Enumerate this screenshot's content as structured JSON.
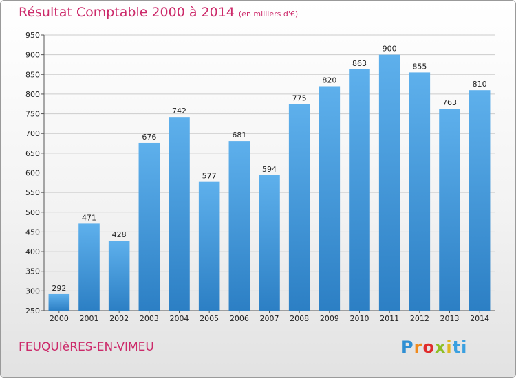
{
  "title": "Résultat Comptable 2000 à 2014",
  "subtitle": "(en milliers d'€)",
  "location": "FEUQUIèRES-EN-VIMEU",
  "logo": {
    "letters": [
      "P",
      "r",
      "o",
      "x",
      "i",
      "ti"
    ]
  },
  "colors": {
    "title": "#cc2a6a",
    "bar": "#3d94dc",
    "grid": "#cccccc"
  },
  "chart_data": {
    "type": "bar",
    "title": "Résultat Comptable 2000 à 2014",
    "subtitle": "(en milliers d'€)",
    "xlabel": "",
    "ylabel": "",
    "ylim": [
      250,
      950
    ],
    "yticks": [
      250,
      300,
      350,
      400,
      450,
      500,
      550,
      600,
      650,
      700,
      750,
      800,
      850,
      900,
      950
    ],
    "grid": true,
    "categories": [
      "2000",
      "2001",
      "2002",
      "2003",
      "2004",
      "2005",
      "2006",
      "2007",
      "2008",
      "2009",
      "2010",
      "2011",
      "2012",
      "2013",
      "2014"
    ],
    "values": [
      292,
      471,
      428,
      676,
      742,
      577,
      681,
      594,
      775,
      820,
      863,
      900,
      855,
      763,
      810
    ]
  }
}
